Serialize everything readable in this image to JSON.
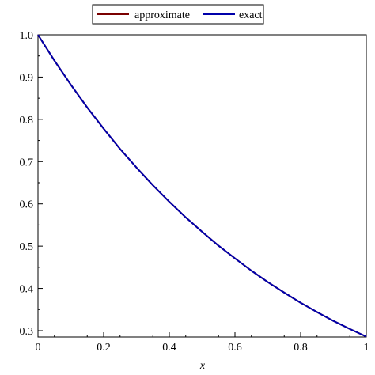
{
  "chart_data": {
    "type": "line",
    "title": "",
    "xlabel": "x",
    "ylabel": "",
    "xlim": [
      0,
      1
    ],
    "ylim": [
      0.285,
      1.0
    ],
    "xticks": [
      0,
      0.2,
      0.4,
      0.6,
      0.8,
      1
    ],
    "xtick_labels": [
      "0",
      "0.2",
      "0.4",
      "0.6",
      "0.8",
      "1"
    ],
    "yticks": [
      0.3,
      0.4,
      0.5,
      0.6,
      0.7,
      0.8,
      0.9,
      1.0
    ],
    "ytick_labels": [
      "0.3",
      "0.4",
      "0.5",
      "0.6",
      "0.7",
      "0.8",
      "0.9",
      "1.0"
    ],
    "grid": false,
    "legend_position": "top-center",
    "x": [
      0,
      0.05,
      0.1,
      0.15,
      0.2,
      0.25,
      0.3,
      0.35,
      0.4,
      0.45,
      0.5,
      0.55,
      0.6,
      0.65,
      0.7,
      0.75,
      0.8,
      0.85,
      0.9,
      0.95,
      1
    ],
    "series": [
      {
        "name": "approximate",
        "color": "#7a0000",
        "values": [
          1.0,
          0.939,
          0.882,
          0.828,
          0.778,
          0.73,
          0.686,
          0.644,
          0.605,
          0.568,
          0.534,
          0.501,
          0.471,
          0.442,
          0.415,
          0.39,
          0.366,
          0.344,
          0.323,
          0.304,
          0.286
        ]
      },
      {
        "name": "exact",
        "color": "#0000aa",
        "values": [
          1.0,
          0.939,
          0.882,
          0.828,
          0.778,
          0.73,
          0.686,
          0.644,
          0.605,
          0.568,
          0.534,
          0.501,
          0.471,
          0.442,
          0.415,
          0.39,
          0.366,
          0.344,
          0.323,
          0.304,
          0.286
        ]
      }
    ]
  }
}
